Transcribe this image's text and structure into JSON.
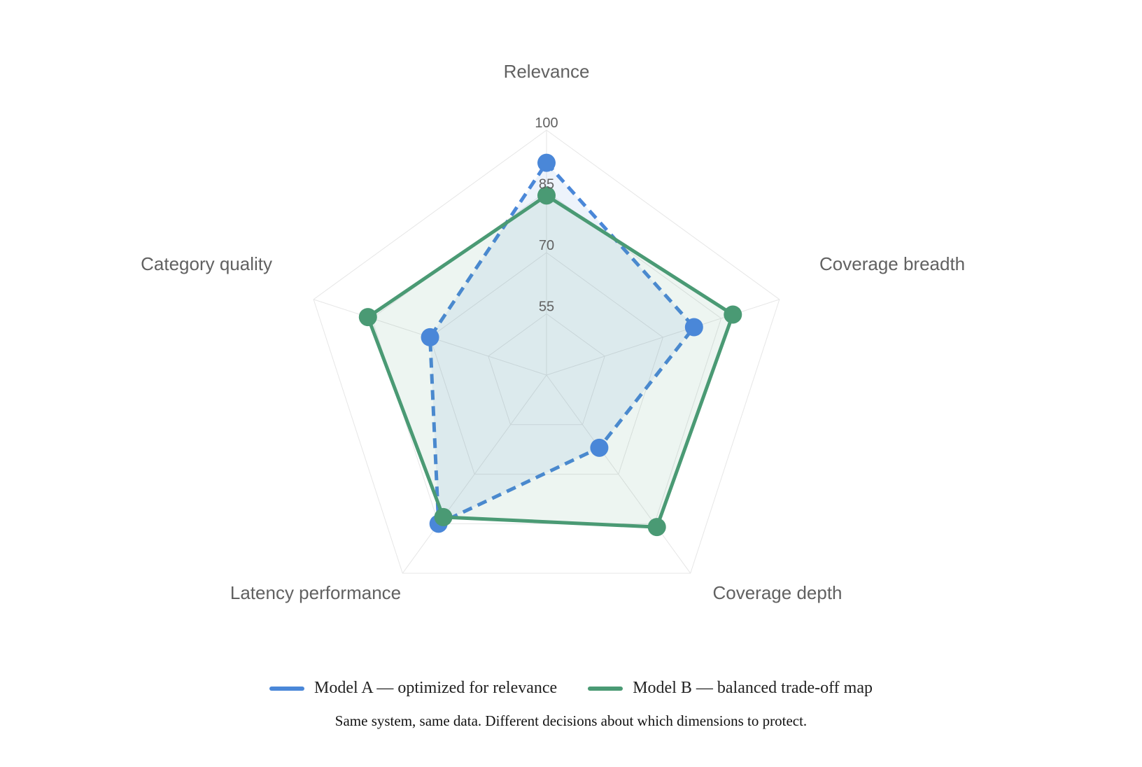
{
  "chart_data": {
    "type": "radar",
    "axes": [
      "Relevance",
      "Coverage breadth",
      "Coverage depth",
      "Latency performance",
      "Category quality"
    ],
    "r_ticks": [
      55,
      70,
      85,
      100
    ],
    "r_range": [
      40,
      100
    ],
    "grid": true,
    "legend_position": "bottom",
    "series": [
      {
        "name": "Model A — optimized for relevance",
        "values": [
          92,
          78,
          62,
          85,
          70
        ],
        "color": "#4a87d8",
        "line_style": "dashed"
      },
      {
        "name": "Model B — balanced trade-off map",
        "values": [
          84,
          88,
          86,
          83,
          86
        ],
        "color": "#4a9a74",
        "line_style": "solid"
      }
    ],
    "caption": "Same system, same data. Different decisions about which dimensions to protect."
  }
}
